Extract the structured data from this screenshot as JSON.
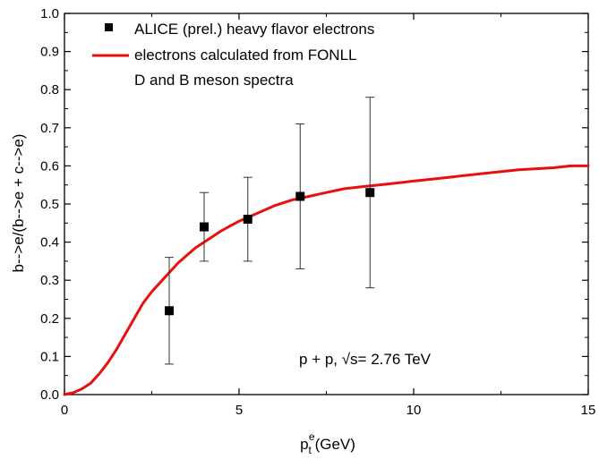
{
  "chart_data": {
    "type": "scatter",
    "xlabel": {
      "base": "p",
      "sub": "t",
      "sup": "e",
      "unit": "(GeV)"
    },
    "ylabel": "b-->e/(b-->e + c-->e)",
    "xlim": [
      0,
      15
    ],
    "ylim": [
      0,
      1.0
    ],
    "x_ticks": [
      "0",
      "5",
      "10",
      "15"
    ],
    "y_ticks": [
      "0.0",
      "0.1",
      "0.2",
      "0.3",
      "0.4",
      "0.5",
      "0.6",
      "0.7",
      "0.8",
      "0.9",
      "1.0"
    ],
    "grid": false,
    "legend_position": "top-left",
    "annotation": "p + p, √s= 2.76 TeV",
    "series": [
      {
        "name": "ALICE (prel.) heavy flavor electrons",
        "kind": "points_with_errorbars",
        "color": "#000000",
        "points": [
          {
            "x": 3.0,
            "y": 0.22,
            "ylow": 0.08,
            "yhigh": 0.36
          },
          {
            "x": 4.0,
            "y": 0.44,
            "ylow": 0.35,
            "yhigh": 0.53
          },
          {
            "x": 5.25,
            "y": 0.46,
            "ylow": 0.35,
            "yhigh": 0.57
          },
          {
            "x": 6.75,
            "y": 0.52,
            "ylow": 0.33,
            "yhigh": 0.71
          },
          {
            "x": 8.75,
            "y": 0.53,
            "ylow": 0.28,
            "yhigh": 0.78
          }
        ]
      },
      {
        "name": "electrons calculated from FONLL",
        "name_line2": "D and B meson spectra",
        "kind": "line",
        "color": "#e8100f",
        "x": [
          0,
          0.25,
          0.5,
          0.75,
          1.0,
          1.25,
          1.5,
          1.75,
          2.0,
          2.25,
          2.5,
          2.75,
          3.0,
          3.25,
          3.5,
          3.75,
          4.0,
          4.5,
          5.0,
          5.5,
          6.0,
          6.5,
          7.0,
          7.5,
          8.0,
          8.5,
          9.0,
          9.5,
          10.0,
          11.0,
          12.0,
          13.0,
          14.0,
          14.5,
          15.0
        ],
        "y": [
          0.0,
          0.005,
          0.015,
          0.03,
          0.055,
          0.085,
          0.12,
          0.16,
          0.2,
          0.24,
          0.27,
          0.295,
          0.32,
          0.345,
          0.365,
          0.385,
          0.4,
          0.43,
          0.455,
          0.475,
          0.495,
          0.51,
          0.52,
          0.53,
          0.54,
          0.545,
          0.55,
          0.555,
          0.56,
          0.57,
          0.58,
          0.59,
          0.595,
          0.6,
          0.6
        ]
      }
    ]
  }
}
